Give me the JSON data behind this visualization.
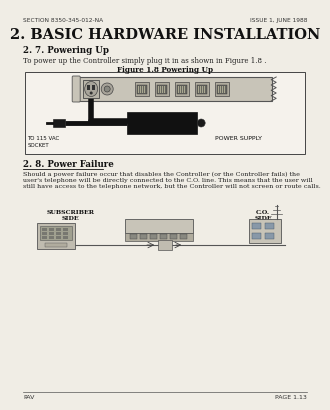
{
  "bg_color": "#f0ede5",
  "header_left": "SECTION 8350-345-012-NA",
  "header_right": "ISSUE 1, JUNE 1988",
  "main_title": "2. BASIC HARDWARE INSTALLATION",
  "section_271_title": "2. 7. Powering Up",
  "section_271_body": "To power up the Controller simply plug it in as shown in Figure 1.8 .",
  "fig_caption": "Figure 1.8 Powering Up",
  "section_28_title": "2. 8. Power Failure",
  "section_28_body": "Should a power failure occur that disables the Controller (or the Controller fails) the\nuser's telephone will be directly connected to the C.O. line. This means that the user will\nstill have access to the telephone network, but the Controller will not screen or route calls.",
  "label_to_socket": "TO 115 VAC\nSOCKET",
  "label_power_supply": "POWER SUPPLY",
  "label_subscriber": "SUBSCRIBER\nSIDE",
  "label_co": "C.O.\nSIDE",
  "footer_left": "PAV",
  "footer_right": "PAGE 1.13",
  "box_facecolor": "#f5f2ec",
  "strip_color": "#d8d4c8",
  "ps_color": "#111111",
  "cable_color": "#111111"
}
